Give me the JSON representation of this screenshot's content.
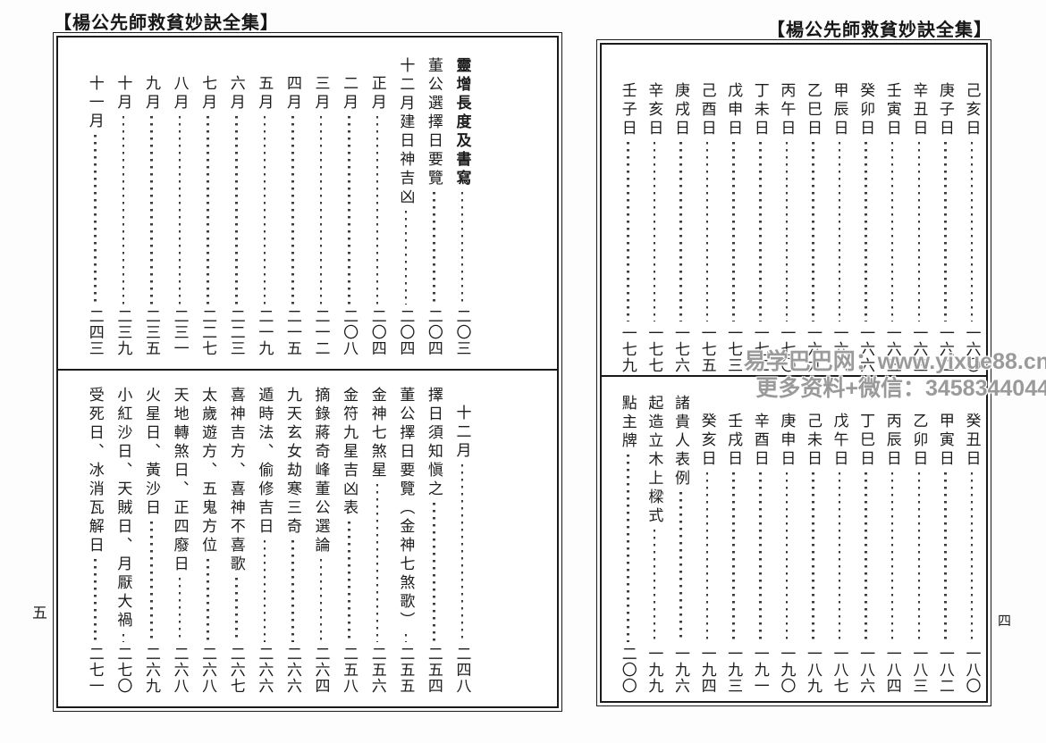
{
  "left_page": {
    "header": "【楊公先師救貧妙訣全集】",
    "folio": "五",
    "top_entries": [
      {
        "title": "靈增長度及書寫",
        "page": "二〇三",
        "bold": true
      },
      {
        "title": "董公選擇日要覽",
        "page": "二〇四"
      },
      {
        "title": "十二月建日神吉凶",
        "page": "二〇四"
      },
      {
        "title": "正月",
        "page": "二〇四",
        "indent": true
      },
      {
        "title": "二月",
        "page": "二〇八",
        "indent": true
      },
      {
        "title": "三月",
        "page": "二一二",
        "indent": true
      },
      {
        "title": "四月",
        "page": "二一五",
        "indent": true
      },
      {
        "title": "五月",
        "page": "二一九",
        "indent": true
      },
      {
        "title": "六月",
        "page": "二二三",
        "indent": true
      },
      {
        "title": "七月",
        "page": "二二七",
        "indent": true
      },
      {
        "title": "八月",
        "page": "二三一",
        "indent": true
      },
      {
        "title": "九月",
        "page": "二三五",
        "indent": true
      },
      {
        "title": "十月",
        "page": "二三九",
        "indent": true
      },
      {
        "title": "十一月",
        "page": "二四三",
        "indent": true
      }
    ],
    "bottom_entries": [
      {
        "title": "十二月",
        "page": "二四八",
        "indent": true
      },
      {
        "title": "擇日須知愼之",
        "page": "二五四"
      },
      {
        "title": "董公擇日要覽（金神七煞歌）",
        "page": "二五五"
      },
      {
        "title": "金神七煞星",
        "page": "二五六"
      },
      {
        "title": "金符九星吉凶表",
        "page": "二五八"
      },
      {
        "title": "摘錄蔣奇峰董公選論",
        "page": "二六四"
      },
      {
        "title": "九天玄女劫寒三奇",
        "page": "二六六"
      },
      {
        "title": "遁時法、偷修吉日",
        "page": "二六六"
      },
      {
        "title": "喜神吉方、喜神不喜歌",
        "page": "二六七"
      },
      {
        "title": "太歲遊方、五鬼方位",
        "page": "二六八"
      },
      {
        "title": "天地轉煞日、正四廢日",
        "page": "二六八"
      },
      {
        "title": "火星日、黃沙日",
        "page": "二六九"
      },
      {
        "title": "小紅沙日、天賊日、月厭大禍",
        "page": "二七〇"
      },
      {
        "title": "受死日、冰消瓦解日",
        "page": "二七一"
      }
    ]
  },
  "right_page": {
    "header": "【楊公先師救貧妙訣全集】",
    "folio": "四",
    "top_entries": [
      {
        "title": "己亥日",
        "page": "一六〇",
        "indent": true
      },
      {
        "title": "庚子日",
        "page": "一六二",
        "indent": true
      },
      {
        "title": "辛丑日",
        "page": "一六三",
        "indent": true
      },
      {
        "title": "壬寅日",
        "page": "一六五",
        "indent": true
      },
      {
        "title": "癸卯日",
        "page": "一六六",
        "indent": true
      },
      {
        "title": "甲辰日",
        "page": "一六八",
        "indent": true
      },
      {
        "title": "乙巳日",
        "page": "一六九",
        "indent": true
      },
      {
        "title": "丙午日",
        "page": "一七〇",
        "indent": true
      },
      {
        "title": "丁未日",
        "page": "一七二",
        "indent": true
      },
      {
        "title": "戊申日",
        "page": "一七三",
        "indent": true
      },
      {
        "title": "己酉日",
        "page": "一七五",
        "indent": true
      },
      {
        "title": "庚戌日",
        "page": "一七六",
        "indent": true
      },
      {
        "title": "辛亥日",
        "page": "一七七",
        "indent": true
      },
      {
        "title": "壬子日",
        "page": "一七九",
        "indent": true
      }
    ],
    "bottom_entries": [
      {
        "title": "癸丑日",
        "page": "一八〇",
        "indent": true
      },
      {
        "title": "甲寅日",
        "page": "一八二",
        "indent": true
      },
      {
        "title": "乙卯日",
        "page": "一八三",
        "indent": true
      },
      {
        "title": "丙辰日",
        "page": "一八四",
        "indent": true
      },
      {
        "title": "丁巳日",
        "page": "一八六",
        "indent": true
      },
      {
        "title": "戊午日",
        "page": "一八七",
        "indent": true
      },
      {
        "title": "己未日",
        "page": "一八九",
        "indent": true
      },
      {
        "title": "庚申日",
        "page": "一九〇",
        "indent": true
      },
      {
        "title": "辛酉日",
        "page": "一九一",
        "indent": true
      },
      {
        "title": "壬戌日",
        "page": "一九三",
        "indent": true
      },
      {
        "title": "癸亥日",
        "page": "一九四",
        "indent": true
      },
      {
        "title": "諸貴人表例",
        "page": "一九六"
      },
      {
        "title": "起造立木上樑式",
        "page": "一九九"
      },
      {
        "title": "點主牌",
        "page": "二〇〇"
      }
    ]
  },
  "watermark": {
    "line1": "易学巴巴网：www.yixue88.cn",
    "line2": "更多资料+微信：3458344044"
  }
}
